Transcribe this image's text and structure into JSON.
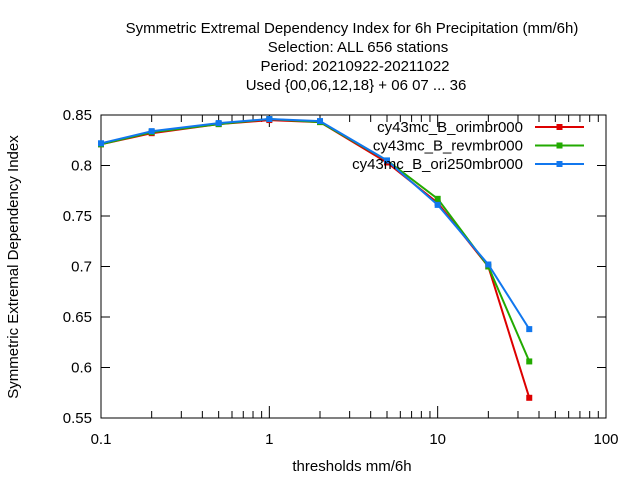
{
  "chart_data": {
    "type": "line",
    "title_lines": [
      "Symmetric Extremal Dependency Index  for 6h Precipitation (mm/6h)",
      "Selection: ALL    656 stations",
      "Period: 20210922-20211022",
      "Used {00,06,12,18} + 06 07 ... 36"
    ],
    "xlabel": "thresholds mm/6h",
    "ylabel": "Symmetric Extremal Dependency Index",
    "x_scale": "log",
    "xlim": [
      0.1,
      100
    ],
    "ylim": [
      0.55,
      0.85
    ],
    "x_ticks": [
      0.1,
      1,
      10,
      100
    ],
    "x_tick_labels": [
      "0.1",
      "1",
      "10",
      "100"
    ],
    "y_ticks": [
      0.55,
      0.6,
      0.65,
      0.7,
      0.75,
      0.8,
      0.85
    ],
    "y_tick_labels": [
      "0.55",
      "0.6",
      "0.65",
      "0.7",
      "0.75",
      "0.8",
      "0.85"
    ],
    "x": [
      0.1,
      0.2,
      0.5,
      1,
      2,
      5,
      10,
      20,
      35
    ],
    "grid": false,
    "legend_position": "top-right",
    "series": [
      {
        "name": "cy43mc_B_orimbr000",
        "color": "#dd0000",
        "values": [
          0.821,
          0.832,
          0.841,
          0.845,
          0.843,
          0.803,
          0.763,
          0.7,
          0.57
        ]
      },
      {
        "name": "cy43mc_B_revmbr000",
        "color": "#22aa00",
        "values": [
          0.821,
          0.833,
          0.841,
          0.846,
          0.843,
          0.805,
          0.767,
          0.7,
          0.606
        ]
      },
      {
        "name": "cy43mc_B_ori250mbr000",
        "color": "#1177ee",
        "values": [
          0.822,
          0.834,
          0.842,
          0.846,
          0.844,
          0.805,
          0.761,
          0.702,
          0.638
        ]
      }
    ]
  }
}
